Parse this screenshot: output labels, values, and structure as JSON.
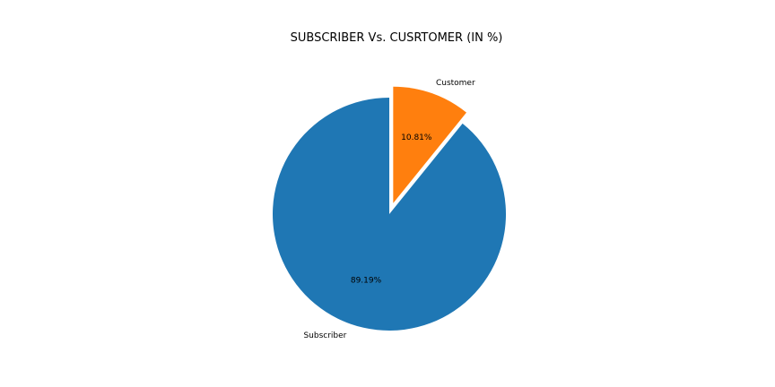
{
  "chart_data": {
    "type": "pie",
    "title": "SUBSCRIBER Vs. CUSRTOMER (IN %)",
    "slices": [
      {
        "label": "Subscriber",
        "value": 89.19,
        "pct_label": "89.19%",
        "color": "#1f77b4",
        "exploded": false
      },
      {
        "label": "Customer",
        "value": 10.81,
        "pct_label": "10.81%",
        "color": "#ff7f0e",
        "exploded": true
      }
    ]
  }
}
